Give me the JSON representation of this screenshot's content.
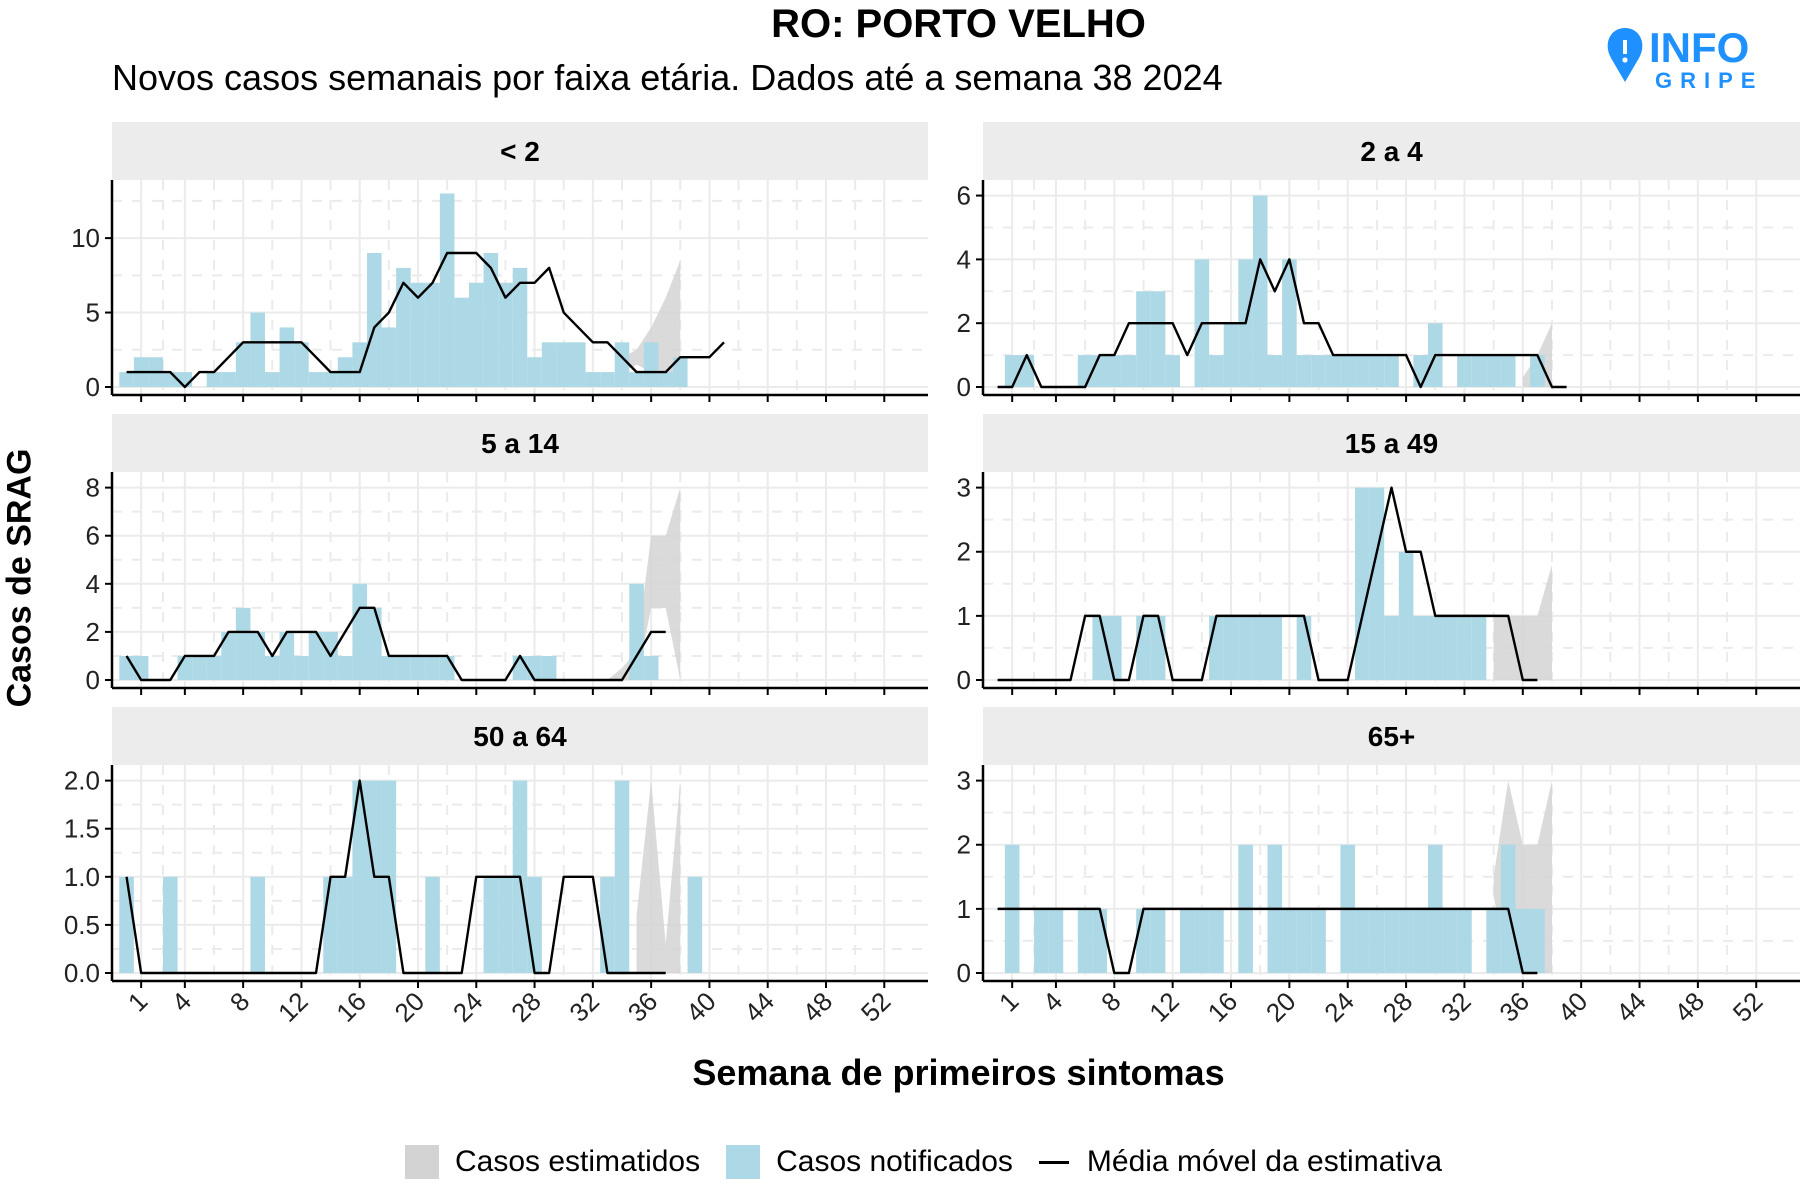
{
  "title": "RO: PORTO VELHO",
  "subtitle": "Novos casos semanais por faixa etária. Dados até a semana 38 2024",
  "logo": {
    "text_top": "INFO",
    "text_bottom": "GRIPE"
  },
  "colors": {
    "notified": "#add8e6",
    "estimated": "#d3d3d3",
    "moving_average": "#000000",
    "strip": "#ececec",
    "grid": "#ebebeb",
    "logo": "#1e90ff"
  },
  "legend": {
    "estimated": "Casos estimatidos",
    "notified": "Casos notificados",
    "moving_average": "Média móvel da estimativa"
  },
  "chart_data": {
    "type": "bar",
    "xlabel": "Semana de primeiros sintomas",
    "ylabel": "Casos de SRAG",
    "x_ticks": [
      1,
      4,
      8,
      12,
      16,
      20,
      24,
      28,
      32,
      36,
      40,
      44,
      48,
      52
    ],
    "xlim": [
      -1,
      55
    ],
    "grid": true,
    "legend_position": "bottom",
    "panels": [
      {
        "label": "< 2",
        "ylim": [
          0,
          13.5
        ],
        "y_ticks": [
          0,
          5,
          10
        ],
        "y_tick_labels": [
          "0",
          "5",
          "10"
        ],
        "notified": [
          1,
          2,
          2,
          1,
          1,
          0,
          1,
          1,
          3,
          5,
          1,
          4,
          3,
          1,
          1,
          2,
          3,
          9,
          4,
          8,
          7,
          7,
          13,
          6,
          7,
          9,
          7,
          8,
          2,
          3,
          3,
          3,
          1,
          1,
          3,
          1,
          3,
          1,
          2
        ],
        "estimated": {
          "x": [
            34,
            35,
            36,
            37,
            38
          ],
          "low": [
            1,
            1.5,
            1,
            1,
            1
          ],
          "high": [
            2,
            2.5,
            4,
            6,
            8.5
          ]
        },
        "moving_average": [
          1,
          1,
          1,
          1,
          0,
          1,
          1,
          2,
          3,
          3,
          3,
          3,
          3,
          2,
          1,
          1,
          1,
          4,
          5,
          7,
          6,
          7,
          9,
          9,
          9,
          8,
          6,
          7,
          7,
          8,
          5,
          4,
          3,
          3,
          2,
          1,
          1,
          1,
          2,
          2,
          2,
          3
        ]
      },
      {
        "label": "2 a 4",
        "ylim": [
          0,
          6.3
        ],
        "y_ticks": [
          0,
          2,
          4,
          6
        ],
        "y_tick_labels": [
          "0",
          "2",
          "4",
          "6"
        ],
        "notified": [
          0,
          1,
          1,
          0,
          0,
          0,
          1,
          1,
          1,
          1,
          3,
          3,
          1,
          0,
          4,
          1,
          2,
          4,
          6,
          1,
          4,
          1,
          1,
          1,
          1,
          1,
          1,
          1,
          0,
          1,
          2,
          0,
          1,
          1,
          1,
          1,
          0,
          1
        ],
        "estimated": {
          "x": [
            36,
            37,
            38
          ],
          "low": [
            0,
            0,
            0
          ],
          "high": [
            0.3,
            1,
            2
          ]
        },
        "moving_average": [
          0,
          0,
          1,
          0,
          0,
          0,
          0,
          1,
          1,
          2,
          2,
          2,
          2,
          1,
          2,
          2,
          2,
          2,
          4,
          3,
          4,
          2,
          2,
          1,
          1,
          1,
          1,
          1,
          1,
          0,
          1,
          1,
          1,
          1,
          1,
          1,
          1,
          1,
          0,
          0
        ]
      },
      {
        "label": "5 a 14",
        "ylim": [
          0,
          8.4
        ],
        "y_ticks": [
          0,
          2,
          4,
          6,
          8
        ],
        "y_tick_labels": [
          "0",
          "2",
          "4",
          "6",
          "8"
        ],
        "notified": [
          1,
          1,
          0,
          0,
          1,
          1,
          1,
          2,
          3,
          2,
          1,
          2,
          1,
          2,
          2,
          1,
          4,
          3,
          1,
          1,
          1,
          1,
          1,
          0,
          0,
          0,
          0,
          1,
          1,
          1,
          0,
          0,
          0,
          0,
          0,
          4,
          1
        ],
        "estimated": {
          "x": [
            33,
            34,
            35,
            36,
            37,
            38
          ],
          "low": [
            0,
            0,
            0,
            3,
            3,
            0
          ],
          "high": [
            0,
            0.5,
            1.2,
            6,
            6,
            8
          ]
        },
        "moving_average": [
          1,
          0,
          0,
          0,
          1,
          1,
          1,
          2,
          2,
          2,
          1,
          2,
          2,
          2,
          1,
          2,
          3,
          3,
          1,
          1,
          1,
          1,
          1,
          0,
          0,
          0,
          0,
          1,
          0,
          0,
          0,
          0,
          0,
          0,
          0,
          1,
          2,
          2
        ]
      },
      {
        "label": "15 a 49",
        "ylim": [
          0,
          3.15
        ],
        "y_ticks": [
          0,
          1,
          2,
          3
        ],
        "y_tick_labels": [
          "0",
          "1",
          "2",
          "3"
        ],
        "notified": [
          0,
          0,
          0,
          0,
          0,
          0,
          0,
          1,
          1,
          0,
          1,
          1,
          0,
          0,
          0,
          1,
          1,
          1,
          1,
          1,
          0,
          1,
          0,
          0,
          0,
          3,
          3,
          1,
          2,
          1,
          1,
          1,
          1,
          1,
          0,
          0,
          0
        ],
        "estimated": {
          "x": [
            34,
            35,
            36,
            37,
            38
          ],
          "low": [
            0,
            0,
            0,
            0,
            0
          ],
          "high": [
            1,
            1,
            1,
            1,
            1.8
          ]
        },
        "moving_average": [
          0,
          0,
          0,
          0,
          0,
          0,
          1,
          1,
          0,
          0,
          1,
          1,
          0,
          0,
          0,
          1,
          1,
          1,
          1,
          1,
          1,
          1,
          0,
          0,
          0,
          1,
          2,
          3,
          2,
          2,
          1,
          1,
          1,
          1,
          1,
          1,
          0,
          0
        ]
      },
      {
        "label": "50 a 64",
        "ylim": [
          0,
          2.1
        ],
        "y_ticks": [
          0,
          0.5,
          1,
          1.5,
          2
        ],
        "y_tick_labels": [
          "0.0",
          "0.5",
          "1.0",
          "1.5",
          "2.0"
        ],
        "notified": [
          1,
          0,
          0,
          1,
          0,
          0,
          0,
          0,
          0,
          1,
          0,
          0,
          0,
          0,
          1,
          1,
          2,
          2,
          2,
          0,
          0,
          1,
          0,
          0,
          0,
          1,
          1,
          2,
          1,
          0,
          0,
          0,
          0,
          1,
          2,
          0,
          0,
          0,
          0,
          1
        ],
        "estimated": {
          "x": [
            35,
            36,
            37,
            38
          ],
          "low": [
            0,
            0,
            0,
            0
          ],
          "high": [
            0.6,
            2,
            0.3,
            2
          ]
        },
        "moving_average": [
          1,
          0,
          0,
          0,
          0,
          0,
          0,
          0,
          0,
          0,
          0,
          0,
          0,
          0,
          1,
          1,
          2,
          1,
          1,
          0,
          0,
          0,
          0,
          0,
          1,
          1,
          1,
          1,
          0,
          0,
          1,
          1,
          1,
          0,
          0,
          0,
          0,
          0
        ]
      },
      {
        "label": "65+",
        "ylim": [
          0,
          3.15
        ],
        "y_ticks": [
          0,
          1,
          2,
          3
        ],
        "y_tick_labels": [
          "0",
          "1",
          "2",
          "3"
        ],
        "notified": [
          0,
          2,
          0,
          1,
          1,
          0,
          1,
          1,
          0,
          0,
          1,
          1,
          0,
          1,
          1,
          1,
          0,
          2,
          0,
          2,
          1,
          1,
          1,
          0,
          2,
          1,
          1,
          1,
          1,
          1,
          2,
          1,
          1,
          0,
          1,
          2,
          1,
          1
        ],
        "estimated": {
          "x": [
            34,
            35,
            36,
            37,
            38
          ],
          "low": [
            1.2,
            0,
            0,
            0,
            0
          ],
          "high": [
            1.5,
            3,
            2,
            2,
            3
          ]
        },
        "moving_average": [
          1,
          1,
          1,
          1,
          1,
          1,
          1,
          1,
          0,
          0,
          1,
          1,
          1,
          1,
          1,
          1,
          1,
          1,
          1,
          1,
          1,
          1,
          1,
          1,
          1,
          1,
          1,
          1,
          1,
          1,
          1,
          1,
          1,
          1,
          1,
          1,
          0,
          0
        ]
      }
    ]
  }
}
